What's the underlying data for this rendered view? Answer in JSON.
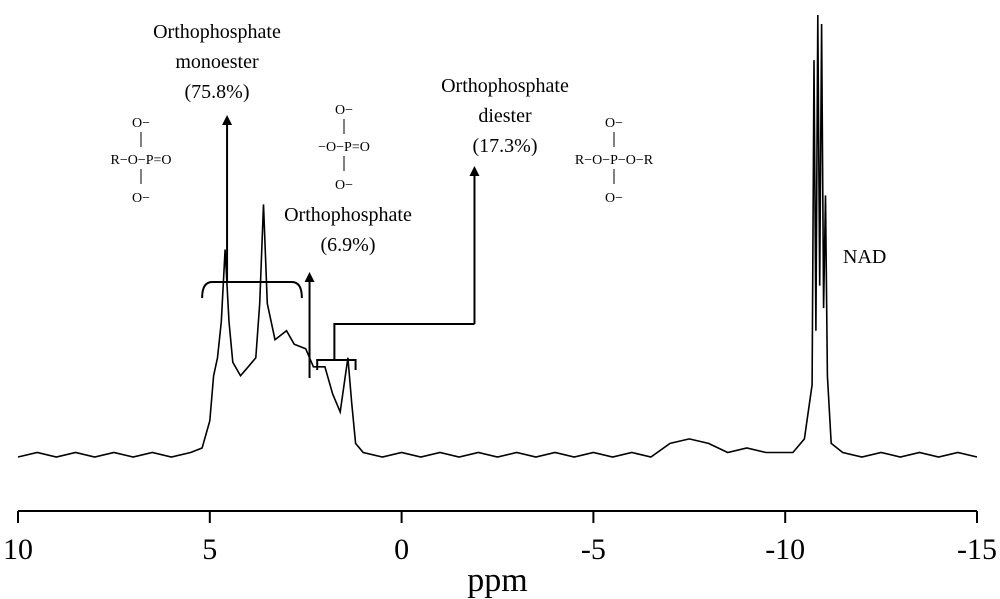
{
  "chart_data": {
    "type": "line",
    "title": "",
    "xlabel": "ppm",
    "ylabel": "",
    "xlim": [
      10,
      -15
    ],
    "x_reversed": true,
    "grid": false,
    "xticks": [
      "10",
      "5",
      "0",
      "-5",
      "-10",
      "-15"
    ],
    "series": [
      {
        "name": "",
        "points": [
          [
            10.0,
            0.02
          ],
          [
            9.5,
            0.03
          ],
          [
            9.0,
            0.02
          ],
          [
            8.5,
            0.03
          ],
          [
            8.0,
            0.02
          ],
          [
            7.5,
            0.03
          ],
          [
            7.0,
            0.02
          ],
          [
            6.5,
            0.03
          ],
          [
            6.0,
            0.02
          ],
          [
            5.5,
            0.03
          ],
          [
            5.2,
            0.04
          ],
          [
            5.0,
            0.1
          ],
          [
            4.9,
            0.2
          ],
          [
            4.8,
            0.24
          ],
          [
            4.7,
            0.32
          ],
          [
            4.6,
            0.48
          ],
          [
            4.5,
            0.32
          ],
          [
            4.4,
            0.23
          ],
          [
            4.2,
            0.2
          ],
          [
            4.0,
            0.22
          ],
          [
            3.8,
            0.24
          ],
          [
            3.7,
            0.36
          ],
          [
            3.6,
            0.58
          ],
          [
            3.5,
            0.36
          ],
          [
            3.3,
            0.28
          ],
          [
            3.0,
            0.3
          ],
          [
            2.8,
            0.27
          ],
          [
            2.5,
            0.26
          ],
          [
            2.3,
            0.22
          ],
          [
            2.0,
            0.22
          ],
          [
            1.8,
            0.16
          ],
          [
            1.6,
            0.12
          ],
          [
            1.4,
            0.24
          ],
          [
            1.3,
            0.14
          ],
          [
            1.2,
            0.05
          ],
          [
            1.0,
            0.03
          ],
          [
            0.5,
            0.02
          ],
          [
            0.0,
            0.03
          ],
          [
            -0.5,
            0.02
          ],
          [
            -1.0,
            0.03
          ],
          [
            -1.5,
            0.02
          ],
          [
            -2.0,
            0.03
          ],
          [
            -2.5,
            0.02
          ],
          [
            -3.0,
            0.03
          ],
          [
            -3.5,
            0.02
          ],
          [
            -4.0,
            0.03
          ],
          [
            -4.5,
            0.02
          ],
          [
            -5.0,
            0.03
          ],
          [
            -5.5,
            0.02
          ],
          [
            -6.0,
            0.03
          ],
          [
            -6.5,
            0.02
          ],
          [
            -7.0,
            0.05
          ],
          [
            -7.5,
            0.06
          ],
          [
            -8.0,
            0.05
          ],
          [
            -8.5,
            0.03
          ],
          [
            -9.0,
            0.04
          ],
          [
            -9.5,
            0.03
          ],
          [
            -10.0,
            0.03
          ],
          [
            -10.2,
            0.03
          ],
          [
            -10.5,
            0.06
          ],
          [
            -10.7,
            0.18
          ],
          [
            -10.75,
            0.9
          ],
          [
            -10.8,
            0.3
          ],
          [
            -10.85,
            1.0
          ],
          [
            -10.9,
            0.4
          ],
          [
            -10.95,
            0.98
          ],
          [
            -11.0,
            0.35
          ],
          [
            -11.05,
            0.6
          ],
          [
            -11.1,
            0.2
          ],
          [
            -11.2,
            0.05
          ],
          [
            -11.5,
            0.03
          ],
          [
            -12.0,
            0.02
          ],
          [
            -12.5,
            0.03
          ],
          [
            -13.0,
            0.02
          ],
          [
            -13.5,
            0.03
          ],
          [
            -14.0,
            0.02
          ],
          [
            -14.5,
            0.03
          ],
          [
            -15.0,
            0.02
          ]
        ]
      }
    ],
    "annotations": {
      "monoester": {
        "lines": [
          "Orthophosphate",
          "monoester",
          "(75.8%)"
        ],
        "range": [
          5.2,
          2.6
        ],
        "arrow_x": 4.55
      },
      "ortho": {
        "lines": [
          "Orthophosphate",
          "(6.9%)"
        ],
        "arrow_x": 2.4
      },
      "diester": {
        "lines": [
          "Orthophosphate",
          "diester",
          "(17.3%)"
        ],
        "range": [
          2.2,
          1.2
        ],
        "arrow_x": -1.9
      },
      "nad": "NAD"
    },
    "structures": {
      "monoester": {
        "top": "O−",
        "mid": "R−O−P=O",
        "bottom": "O−"
      },
      "ortho": {
        "top": "O−",
        "mid": "−O−P=O",
        "bottom": "O−"
      },
      "diester": {
        "top": "O−",
        "mid": "R−O−P−O−R",
        "bottom": "O−"
      }
    }
  }
}
